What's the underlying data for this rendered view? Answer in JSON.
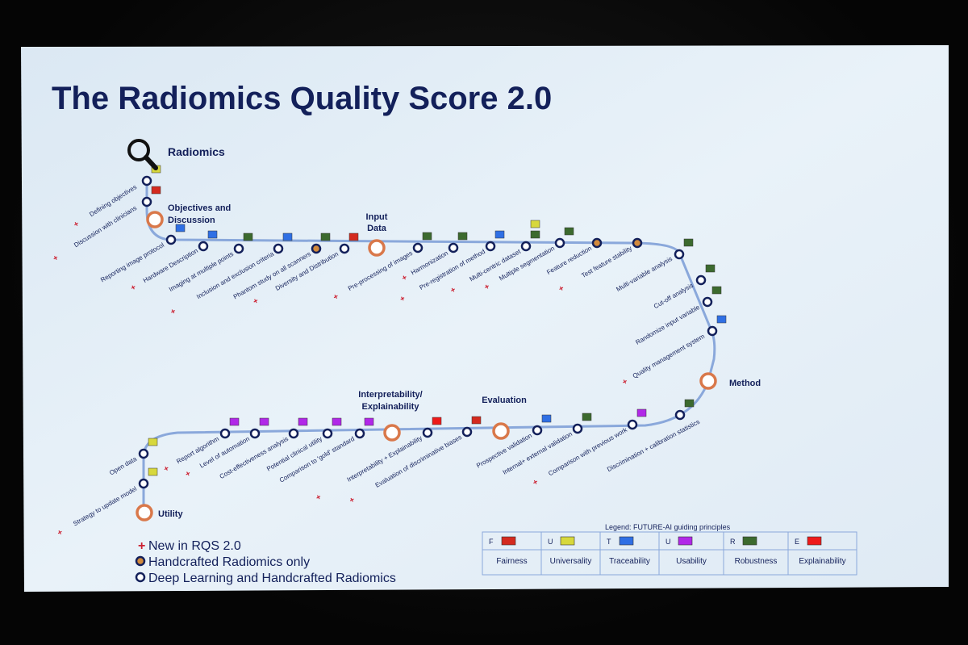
{
  "title": "The Radiomics Quality Score 2.0",
  "colors": {
    "slide_bg": "#e6f0f8",
    "track": "#8aa8db",
    "ink": "#13205a",
    "phase_ring": "#d9784a",
    "dot_inner_handcrafted": "#d28a3c",
    "new_marker": "#cc2233",
    "F": "#d42a1e",
    "U1": "#d7d83c",
    "T": "#2f6fe4",
    "U2": "#b128e8",
    "R": "#3c6a2e",
    "E": "#ee1a1a"
  },
  "phases": [
    {
      "key": "radiomics",
      "label": "Radiomics"
    },
    {
      "key": "objectives",
      "label1": "Objectives and",
      "label2": "Discussion"
    },
    {
      "key": "input",
      "label1": "Input",
      "label2": "Data"
    },
    {
      "key": "method",
      "label": "Method"
    },
    {
      "key": "evaluation",
      "label": "Evaluation"
    },
    {
      "key": "interpret",
      "label1": "Interpretability/",
      "label2": "Explainability"
    },
    {
      "key": "utility",
      "label": "Utility"
    }
  ],
  "items": [
    {
      "label": "Defining objectives",
      "new": true,
      "handcrafted": false,
      "tags": [
        "U1"
      ]
    },
    {
      "label": "Discussion with clinicians",
      "new": true,
      "handcrafted": false,
      "tags": [
        "F"
      ]
    },
    {
      "label": "Reporting image protocol",
      "new": false,
      "handcrafted": false,
      "tags": [
        "T"
      ]
    },
    {
      "label": "Hardware Description",
      "new": true,
      "handcrafted": false,
      "tags": [
        "T"
      ]
    },
    {
      "label": "Imaging at multiple points",
      "new": false,
      "handcrafted": false,
      "tags": [
        "R"
      ]
    },
    {
      "label": "Inclusion and exclusion criteria",
      "new": true,
      "handcrafted": false,
      "tags": [
        "T"
      ]
    },
    {
      "label": "Phantom study on all scanners",
      "new": false,
      "handcrafted": true,
      "tags": [
        "R"
      ]
    },
    {
      "label": "Diversity and Distribution",
      "new": true,
      "handcrafted": false,
      "tags": [
        "F"
      ]
    },
    {
      "label": "Pre-processing of images",
      "new": true,
      "handcrafted": false,
      "tags": [
        "R"
      ]
    },
    {
      "label": "Harmonization",
      "new": true,
      "handcrafted": false,
      "tags": [
        "R"
      ]
    },
    {
      "label": "Pre-registration of method",
      "new": true,
      "handcrafted": false,
      "tags": [
        "T"
      ]
    },
    {
      "label": "Multi-centric dataset",
      "new": true,
      "handcrafted": false,
      "tags": [
        "R",
        "U1"
      ]
    },
    {
      "label": "Multiple segmentation",
      "new": true,
      "handcrafted": false,
      "tags": [
        "R"
      ]
    },
    {
      "label": "Feature reduction",
      "new": false,
      "handcrafted": true,
      "tags": []
    },
    {
      "label": "Test feature stability",
      "new": true,
      "handcrafted": true,
      "tags": []
    },
    {
      "label": "Multi-variable analysis",
      "new": false,
      "handcrafted": false,
      "tags": [
        "R"
      ]
    },
    {
      "label": "Cut-off analysis",
      "new": false,
      "handcrafted": false,
      "tags": [
        "R"
      ]
    },
    {
      "label": "Randomize input variable",
      "new": false,
      "handcrafted": false,
      "tags": [
        "R"
      ]
    },
    {
      "label": "Quality management system",
      "new": true,
      "handcrafted": false,
      "tags": [
        "T"
      ]
    },
    {
      "label": "Discrimination + calibration statistics",
      "new": false,
      "handcrafted": false,
      "tags": [
        "R"
      ]
    },
    {
      "label": "Comparison with previous work",
      "new": true,
      "handcrafted": false,
      "tags": [
        "U2"
      ]
    },
    {
      "label": "Internal+ external validation",
      "new": false,
      "handcrafted": false,
      "tags": [
        "R"
      ]
    },
    {
      "label": "Prospective validation",
      "new": false,
      "handcrafted": false,
      "tags": [
        "T"
      ]
    },
    {
      "label": "Evaluation of discriminative biases",
      "new": true,
      "handcrafted": false,
      "tags": [
        "F"
      ]
    },
    {
      "label": "Interpretability + Explainability",
      "new": true,
      "handcrafted": false,
      "tags": [
        "E"
      ]
    },
    {
      "label": "Comparison to 'gold' standard",
      "new": false,
      "handcrafted": false,
      "tags": [
        "U2"
      ]
    },
    {
      "label": "Potential clinical utility",
      "new": false,
      "handcrafted": false,
      "tags": [
        "U2"
      ]
    },
    {
      "label": "Cost-effectiveness analysis",
      "new": false,
      "handcrafted": false,
      "tags": [
        "U2"
      ]
    },
    {
      "label": "Level of automation",
      "new": true,
      "handcrafted": false,
      "tags": [
        "U2"
      ]
    },
    {
      "label": "Report algorithm",
      "new": true,
      "handcrafted": false,
      "tags": [
        "U2"
      ]
    },
    {
      "label": "Open data",
      "new": false,
      "handcrafted": false,
      "tags": [
        "U1"
      ]
    },
    {
      "label": "Strategy to update model",
      "new": true,
      "handcrafted": false,
      "tags": [
        "U1"
      ]
    }
  ],
  "key_legend": [
    {
      "symbol": "+",
      "text": "New in RQS 2.0"
    },
    {
      "symbol": "handcrafted-dot",
      "text": "Handcrafted Radiomics only"
    },
    {
      "symbol": "open-dot",
      "text": "Deep Learning and Handcrafted Radiomics"
    }
  ],
  "principles_legend": {
    "title": "Legend: FUTURE-AI guiding principles",
    "entries": [
      {
        "letter": "F",
        "name": "Fairness",
        "tag": "F"
      },
      {
        "letter": "U",
        "name": "Universality",
        "tag": "U1"
      },
      {
        "letter": "T",
        "name": "Traceability",
        "tag": "T"
      },
      {
        "letter": "U",
        "name": "Usability",
        "tag": "U2"
      },
      {
        "letter": "R",
        "name": "Robustness",
        "tag": "R"
      },
      {
        "letter": "E",
        "name": "Explainability",
        "tag": "E"
      }
    ]
  }
}
